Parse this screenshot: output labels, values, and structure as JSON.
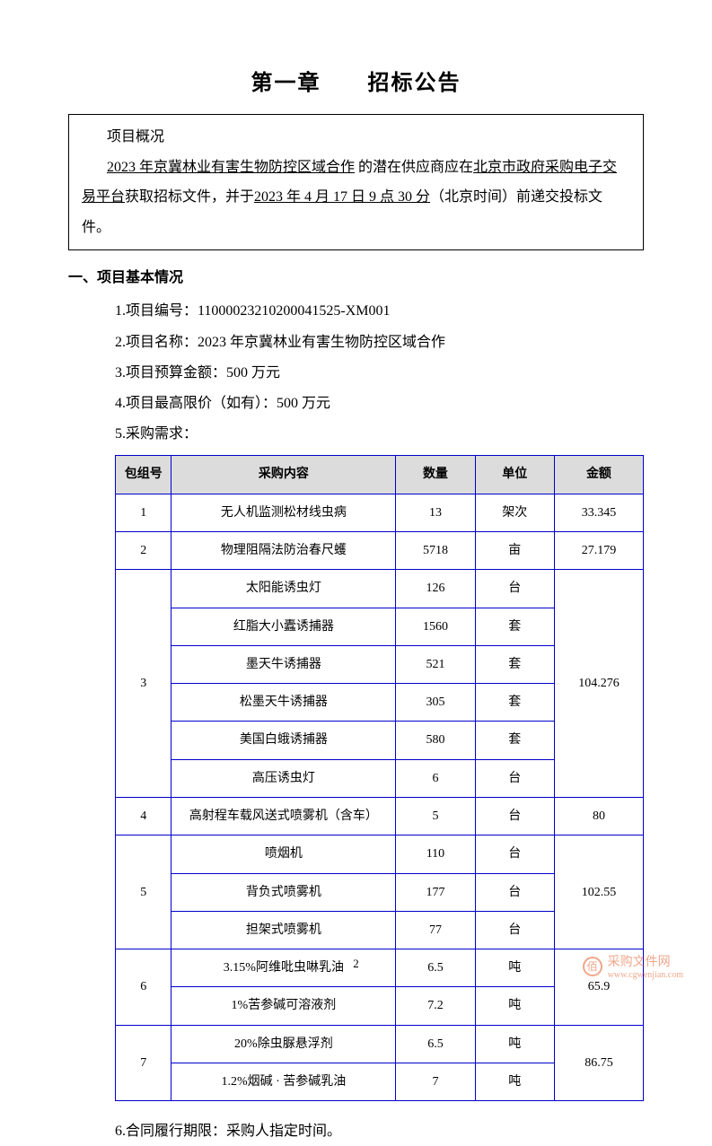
{
  "chapter": {
    "title": "第一章　　招标公告"
  },
  "overview": {
    "line1_prefix": "项目概况",
    "line2_part1": "2023 年京冀林业有害生物防控区域合作",
    "line2_part2": " 的潜在供应商应在",
    "line2_part3": "北京市政府采购电子交",
    "line3_part1": "易平台",
    "line3_part2": "获取招标文件，并于",
    "line3_part3": "2023 年 4 月 17 日 9 点 30 分",
    "line3_part4": "（北京时间）前递交投标文件。"
  },
  "section1": {
    "heading": "一、项目基本情况",
    "items": [
      "1.项目编号：11000023210200041525-XM001",
      "2.项目名称：2023 年京冀林业有害生物防控区域合作",
      "3.项目预算金额：500 万元",
      "4.项目最高限价（如有）：500 万元",
      "5.采购需求："
    ],
    "item6": "6.合同履行期限：采购人指定时间。"
  },
  "table": {
    "headers": {
      "group": "包组号",
      "content": "采购内容",
      "qty": "数量",
      "unit": "单位",
      "amount": "金额"
    },
    "colors": {
      "border": "#0000cc",
      "header_bg": "#dcdcdc"
    },
    "rows": [
      {
        "group": "1",
        "content": "无人机监测松材线虫病",
        "qty": "13",
        "unit": "架次",
        "amount": "33.345",
        "rowspan_group": 1,
        "rowspan_amount": 1
      },
      {
        "group": "2",
        "content": "物理阻隔法防治春尺蠖",
        "qty": "5718",
        "unit": "亩",
        "amount": "27.179",
        "rowspan_group": 1,
        "rowspan_amount": 1
      },
      {
        "group": "3",
        "content": "太阳能诱虫灯",
        "qty": "126",
        "unit": "台",
        "amount": "104.276",
        "rowspan_group": 6,
        "rowspan_amount": 6
      },
      {
        "content": "红脂大小蠹诱捕器",
        "qty": "1560",
        "unit": "套"
      },
      {
        "content": "墨天牛诱捕器",
        "qty": "521",
        "unit": "套"
      },
      {
        "content": "松墨天牛诱捕器",
        "qty": "305",
        "unit": "套"
      },
      {
        "content": "美国白蛾诱捕器",
        "qty": "580",
        "unit": "套"
      },
      {
        "content": "高压诱虫灯",
        "qty": "6",
        "unit": "台"
      },
      {
        "group": "4",
        "content": "高射程车载风送式喷雾机（含车）",
        "qty": "5",
        "unit": "台",
        "amount": "80",
        "rowspan_group": 1,
        "rowspan_amount": 1,
        "content_left": true
      },
      {
        "group": "5",
        "content": "喷烟机",
        "qty": "110",
        "unit": "台",
        "amount": "102.55",
        "rowspan_group": 3,
        "rowspan_amount": 3
      },
      {
        "content": "背负式喷雾机",
        "qty": "177",
        "unit": "台"
      },
      {
        "content": "担架式喷雾机",
        "qty": "77",
        "unit": "台"
      },
      {
        "group": "6",
        "content": "3.15%阿维吡虫啉乳油",
        "qty": "6.5",
        "unit": "吨",
        "amount": "65.9",
        "rowspan_group": 2,
        "rowspan_amount": 2,
        "content_left": true
      },
      {
        "content": "1%苦参碱可溶液剂",
        "qty": "7.2",
        "unit": "吨",
        "content_left": true
      },
      {
        "group": "7",
        "content": "20%除虫脲悬浮剂",
        "qty": "6.5",
        "unit": "吨",
        "amount": "86.75",
        "rowspan_group": 2,
        "rowspan_amount": 2,
        "content_left": true
      },
      {
        "content": "1.2%烟碱 · 苦参碱乳油",
        "qty": "7",
        "unit": "吨",
        "content_left": true
      }
    ]
  },
  "page_number": "2",
  "watermark": {
    "icon_text": "佰",
    "text": "采购文件网",
    "url": "www.cgwenjian.com"
  }
}
